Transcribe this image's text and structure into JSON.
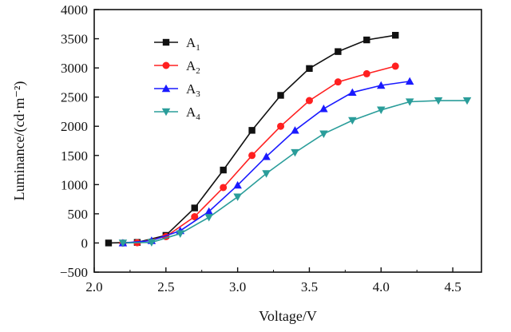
{
  "chart_data": {
    "type": "line",
    "xlabel": "Voltage/V",
    "ylabel": "Luminance/(cd·m⁻²)",
    "xlim": [
      2.0,
      4.7
    ],
    "ylim": [
      -500,
      4000
    ],
    "xticks": [
      "2.0",
      "2.5",
      "3.0",
      "3.5",
      "4.0",
      "4.5"
    ],
    "yticks": [
      "−500",
      "0",
      "500",
      "1000",
      "1500",
      "2000",
      "2500",
      "3000",
      "3500",
      "4000"
    ],
    "legend_position": "upper-left",
    "grid": false,
    "series": [
      {
        "name": "A1",
        "name_main": "A",
        "name_sub": "1",
        "color": "#111111",
        "marker": "square",
        "x": [
          2.1,
          2.3,
          2.5,
          2.7,
          2.9,
          3.1,
          3.3,
          3.5,
          3.7,
          3.9,
          4.1
        ],
        "y": [
          0,
          10,
          130,
          600,
          1250,
          1930,
          2530,
          2990,
          3280,
          3480,
          3560
        ]
      },
      {
        "name": "A2",
        "name_main": "A",
        "name_sub": "2",
        "color": "#ff2020",
        "marker": "circle",
        "x": [
          2.2,
          2.3,
          2.5,
          2.7,
          2.9,
          3.1,
          3.3,
          3.5,
          3.7,
          3.9,
          4.1
        ],
        "y": [
          0,
          5,
          110,
          450,
          950,
          1500,
          2000,
          2440,
          2760,
          2900,
          3030
        ]
      },
      {
        "name": "A3",
        "name_main": "A",
        "name_sub": "3",
        "color": "#1a1aff",
        "marker": "triangle-up",
        "x": [
          2.2,
          2.4,
          2.6,
          2.8,
          3.0,
          3.2,
          3.4,
          3.6,
          3.8,
          4.0,
          4.2
        ],
        "y": [
          0,
          40,
          210,
          540,
          990,
          1480,
          1930,
          2300,
          2580,
          2700,
          2770
        ]
      },
      {
        "name": "A4",
        "name_main": "A",
        "name_sub": "4",
        "color": "#2a9d9a",
        "marker": "triangle-down",
        "x": [
          2.2,
          2.4,
          2.6,
          2.8,
          3.0,
          3.2,
          3.4,
          3.6,
          3.8,
          4.0,
          4.2,
          4.4,
          4.6
        ],
        "y": [
          0,
          10,
          160,
          440,
          790,
          1190,
          1550,
          1870,
          2100,
          2280,
          2420,
          2440,
          2440
        ]
      }
    ]
  }
}
